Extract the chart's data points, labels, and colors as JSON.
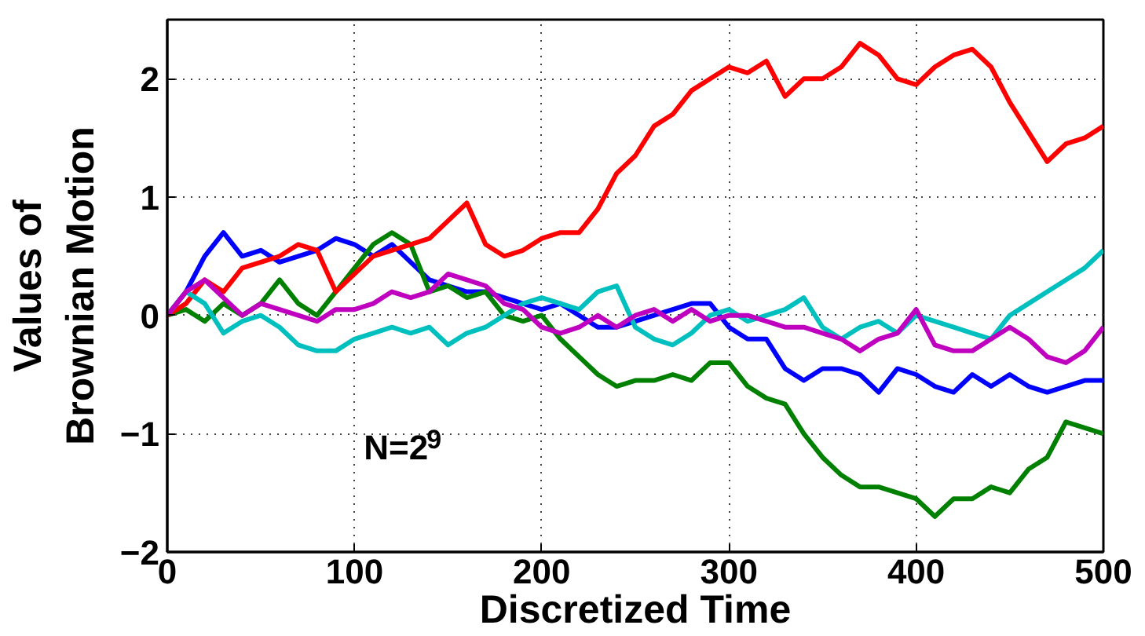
{
  "chart_data": {
    "type": "line",
    "xlabel": "Discretized Time",
    "ylabel": "Values of\nBrownian Motion",
    "x": [
      0,
      10,
      20,
      30,
      40,
      50,
      60,
      70,
      80,
      90,
      100,
      110,
      120,
      130,
      140,
      150,
      160,
      170,
      180,
      190,
      200,
      210,
      220,
      230,
      240,
      250,
      260,
      270,
      280,
      290,
      300,
      310,
      320,
      330,
      340,
      350,
      360,
      370,
      380,
      390,
      400,
      410,
      420,
      430,
      440,
      450,
      460,
      470,
      480,
      490,
      500
    ],
    "series": [
      {
        "color": "#0000ff",
        "values": [
          0,
          0.2,
          0.5,
          0.7,
          0.5,
          0.55,
          0.45,
          0.5,
          0.55,
          0.65,
          0.6,
          0.5,
          0.6,
          0.45,
          0.3,
          0.25,
          0.2,
          0.2,
          0.15,
          0.1,
          0.05,
          0.1,
          0.0,
          -0.1,
          -0.1,
          -0.05,
          0.0,
          0.05,
          0.1,
          0.1,
          -0.1,
          -0.2,
          -0.2,
          -0.45,
          -0.55,
          -0.45,
          -0.45,
          -0.5,
          -0.65,
          -0.45,
          -0.5,
          -0.6,
          -0.65,
          -0.5,
          -0.6,
          -0.5,
          -0.6,
          -0.65,
          -0.6,
          -0.55,
          -0.55
        ]
      },
      {
        "color": "#008000",
        "values": [
          0,
          0.05,
          -0.05,
          0.1,
          0.0,
          0.1,
          0.3,
          0.1,
          0.0,
          0.2,
          0.4,
          0.6,
          0.7,
          0.6,
          0.2,
          0.25,
          0.15,
          0.2,
          0.0,
          -0.05,
          0.0,
          -0.2,
          -0.35,
          -0.5,
          -0.6,
          -0.55,
          -0.55,
          -0.5,
          -0.55,
          -0.4,
          -0.4,
          -0.6,
          -0.7,
          -0.75,
          -1.0,
          -1.2,
          -1.35,
          -1.45,
          -1.45,
          -1.5,
          -1.55,
          -1.7,
          -1.55,
          -1.55,
          -1.45,
          -1.5,
          -1.3,
          -1.2,
          -0.9,
          -0.95,
          -1.0
        ]
      },
      {
        "color": "#ff0000",
        "values": [
          0,
          0.1,
          0.3,
          0.2,
          0.4,
          0.45,
          0.5,
          0.6,
          0.55,
          0.2,
          0.35,
          0.5,
          0.55,
          0.6,
          0.65,
          0.8,
          0.95,
          0.6,
          0.5,
          0.55,
          0.65,
          0.7,
          0.7,
          0.9,
          1.2,
          1.35,
          1.6,
          1.7,
          1.9,
          2.0,
          2.1,
          2.05,
          2.15,
          1.85,
          2.0,
          2.0,
          2.1,
          2.3,
          2.2,
          2.0,
          1.95,
          2.1,
          2.2,
          2.25,
          2.1,
          1.8,
          1.55,
          1.3,
          1.45,
          1.5,
          1.6
        ]
      },
      {
        "color": "#00bfbf",
        "values": [
          0,
          0.2,
          0.1,
          -0.15,
          -0.05,
          0.0,
          -0.1,
          -0.25,
          -0.3,
          -0.3,
          -0.2,
          -0.15,
          -0.1,
          -0.15,
          -0.1,
          -0.25,
          -0.15,
          -0.1,
          0.0,
          0.1,
          0.15,
          0.1,
          0.05,
          0.2,
          0.25,
          -0.1,
          -0.2,
          -0.25,
          -0.15,
          0.0,
          0.05,
          -0.05,
          0.0,
          0.05,
          0.15,
          -0.1,
          -0.2,
          -0.1,
          -0.05,
          -0.15,
          0.0,
          -0.05,
          -0.1,
          -0.15,
          -0.2,
          0.0,
          0.1,
          0.2,
          0.3,
          0.4,
          0.55
        ]
      },
      {
        "color": "#bf00bf",
        "values": [
          0,
          0.2,
          0.3,
          0.15,
          0.0,
          0.1,
          0.05,
          0.0,
          -0.05,
          0.05,
          0.05,
          0.1,
          0.2,
          0.15,
          0.2,
          0.35,
          0.3,
          0.25,
          0.1,
          0.05,
          -0.1,
          -0.15,
          -0.1,
          0.0,
          -0.1,
          0.0,
          0.05,
          -0.05,
          0.05,
          -0.05,
          0.0,
          0.0,
          -0.05,
          -0.1,
          -0.1,
          -0.15,
          -0.2,
          -0.3,
          -0.2,
          -0.15,
          0.05,
          -0.25,
          -0.3,
          -0.3,
          -0.2,
          -0.1,
          -0.2,
          -0.35,
          -0.4,
          -0.3,
          -0.1
        ]
      }
    ],
    "xlim": [
      0,
      500
    ],
    "ylim": [
      -2,
      2.5
    ],
    "xticks": [
      0,
      100,
      200,
      300,
      400,
      500
    ],
    "yticks": [
      -2,
      -1,
      0,
      1,
      2
    ],
    "grid": true,
    "line_style": "solid",
    "marker": "none",
    "annotations": [
      "N=2$^{9}$"
    ]
  }
}
